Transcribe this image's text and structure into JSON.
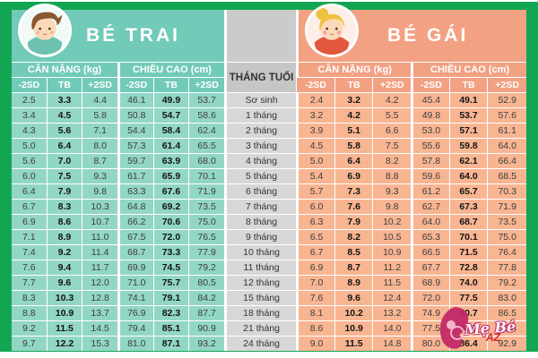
{
  "frame": {
    "border_color": "#12a653"
  },
  "boy_panel": {
    "banner_color": "#72cab8",
    "cell_color": "#92d6c6"
  },
  "girl_panel": {
    "banner_color": "#f2a183",
    "cell_color": "#f8b592"
  },
  "month_column": {
    "header_color": "#c6c6c6",
    "cell_color": "#d7d7d7"
  },
  "watermark": {
    "brand": "Mẹ Bé",
    "suffix": "AZ",
    "color": "#c22a68"
  },
  "chart_data": {
    "type": "table",
    "left_title": "BÉ TRAI",
    "right_title": "BÉ GÁI",
    "group_headers": [
      "CÂN NẶNG (kg)",
      "CHIỀU CAO (cm)"
    ],
    "sd_columns": [
      "-2SD",
      "TB",
      "+2SD"
    ],
    "row_header": "THÁNG TUỔI",
    "rows": [
      {
        "month": "Sơ sinh",
        "boy_weight": [
          "2.5",
          "3.3",
          "4.4"
        ],
        "boy_height": [
          "46.1",
          "49.9",
          "53.7"
        ],
        "girl_weight": [
          "2.4",
          "3.2",
          "4.2"
        ],
        "girl_height": [
          "45.4",
          "49.1",
          "52.9"
        ]
      },
      {
        "month": "1 tháng",
        "boy_weight": [
          "3.4",
          "4.5",
          "5.8"
        ],
        "boy_height": [
          "50.8",
          "54.7",
          "58.6"
        ],
        "girl_weight": [
          "3.2",
          "4.2",
          "5.5"
        ],
        "girl_height": [
          "49.8",
          "53.7",
          "57.6"
        ]
      },
      {
        "month": "2 tháng",
        "boy_weight": [
          "4.3",
          "5.6",
          "7.1"
        ],
        "boy_height": [
          "54.4",
          "58.4",
          "62.4"
        ],
        "girl_weight": [
          "3.9",
          "5.1",
          "6.6"
        ],
        "girl_height": [
          "53.0",
          "57.1",
          "61.1"
        ]
      },
      {
        "month": "3 tháng",
        "boy_weight": [
          "5.0",
          "6.4",
          "8.0"
        ],
        "boy_height": [
          "57.3",
          "61.4",
          "65.5"
        ],
        "girl_weight": [
          "4.5",
          "5.8",
          "7.5"
        ],
        "girl_height": [
          "55.6",
          "59.8",
          "64.0"
        ]
      },
      {
        "month": "4 tháng",
        "boy_weight": [
          "5.6",
          "7.0",
          "8.7"
        ],
        "boy_height": [
          "59.7",
          "63.9",
          "68.0"
        ],
        "girl_weight": [
          "5.0",
          "6.4",
          "8.2"
        ],
        "girl_height": [
          "57.8",
          "62.1",
          "66.4"
        ]
      },
      {
        "month": "5 tháng",
        "boy_weight": [
          "6.0",
          "7.5",
          "9.3"
        ],
        "boy_height": [
          "61.7",
          "65.9",
          "70.1"
        ],
        "girl_weight": [
          "5.4",
          "6.9",
          "8.8"
        ],
        "girl_height": [
          "59.6",
          "64.0",
          "68.5"
        ]
      },
      {
        "month": "6 tháng",
        "boy_weight": [
          "6.4",
          "7.9",
          "9.8"
        ],
        "boy_height": [
          "63.3",
          "67.6",
          "71.9"
        ],
        "girl_weight": [
          "5.7",
          "7.3",
          "9.3"
        ],
        "girl_height": [
          "61.2",
          "65.7",
          "70.3"
        ]
      },
      {
        "month": "7 tháng",
        "boy_weight": [
          "6.7",
          "8.3",
          "10.3"
        ],
        "boy_height": [
          "64.8",
          "69.2",
          "73.5"
        ],
        "girl_weight": [
          "6.0",
          "7.6",
          "9.8"
        ],
        "girl_height": [
          "62.7",
          "67.3",
          "71.9"
        ]
      },
      {
        "month": "8 tháng",
        "boy_weight": [
          "6.9",
          "8.6",
          "10.7"
        ],
        "boy_height": [
          "66.2",
          "70.6",
          "75.0"
        ],
        "girl_weight": [
          "6.3",
          "7.9",
          "10.2"
        ],
        "girl_height": [
          "64.0",
          "68.7",
          "73.5"
        ]
      },
      {
        "month": "9 tháng",
        "boy_weight": [
          "7.1",
          "8.9",
          "11.0"
        ],
        "boy_height": [
          "67.5",
          "72.0",
          "76.5"
        ],
        "girl_weight": [
          "6.5",
          "8.2",
          "10.5"
        ],
        "girl_height": [
          "65.3",
          "70.1",
          "75.0"
        ]
      },
      {
        "month": "10 tháng",
        "boy_weight": [
          "7.4",
          "9.2",
          "11.4"
        ],
        "boy_height": [
          "68.7",
          "73.3",
          "77.9"
        ],
        "girl_weight": [
          "6.7",
          "8.5",
          "10.9"
        ],
        "girl_height": [
          "66.5",
          "71.5",
          "76.4"
        ]
      },
      {
        "month": "11 tháng",
        "boy_weight": [
          "7.6",
          "9.4",
          "11.7"
        ],
        "boy_height": [
          "69.9",
          "74.5",
          "79.2"
        ],
        "girl_weight": [
          "6.9",
          "8.7",
          "11.2"
        ],
        "girl_height": [
          "67.7",
          "72.8",
          "77.8"
        ]
      },
      {
        "month": "12 tháng",
        "boy_weight": [
          "7.7",
          "9.6",
          "12.0"
        ],
        "boy_height": [
          "71.0",
          "75.7",
          "80.5"
        ],
        "girl_weight": [
          "7.0",
          "8.9",
          "11.5"
        ],
        "girl_height": [
          "68.9",
          "74.0",
          "79.2"
        ]
      },
      {
        "month": "15 tháng",
        "boy_weight": [
          "8.3",
          "10.3",
          "12.8"
        ],
        "boy_height": [
          "74.1",
          "79.1",
          "84.2"
        ],
        "girl_weight": [
          "7.6",
          "9.6",
          "12.4"
        ],
        "girl_height": [
          "72.0",
          "77.5",
          "83.0"
        ]
      },
      {
        "month": "18 tháng",
        "boy_weight": [
          "8.8",
          "10.9",
          "13.7"
        ],
        "boy_height": [
          "76.9",
          "82.3",
          "87.7"
        ],
        "girl_weight": [
          "8.1",
          "10.2",
          "13.2"
        ],
        "girl_height": [
          "74.9",
          "80.7",
          "86.5"
        ]
      },
      {
        "month": "21 tháng",
        "boy_weight": [
          "9.2",
          "11.5",
          "14.5"
        ],
        "boy_height": [
          "79.4",
          "85.1",
          "90.9"
        ],
        "girl_weight": [
          "8.6",
          "10.9",
          "14.0"
        ],
        "girl_height": [
          "77.5",
          "83.7",
          "89.8"
        ]
      },
      {
        "month": "24 tháng",
        "boy_weight": [
          "9.7",
          "12.2",
          "15.3"
        ],
        "boy_height": [
          "81.0",
          "87.1",
          "93.2"
        ],
        "girl_weight": [
          "9.0",
          "11.5",
          "14.8"
        ],
        "girl_height": [
          "80.0",
          "86.4",
          "92.9"
        ]
      }
    ]
  }
}
